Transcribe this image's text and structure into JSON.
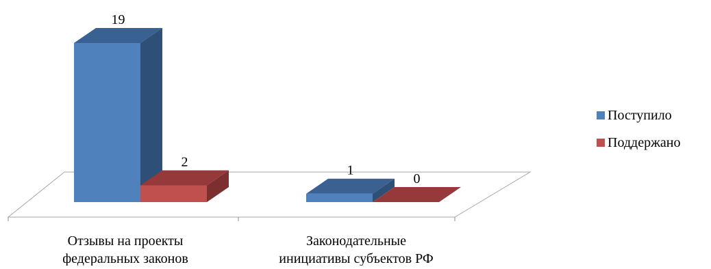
{
  "chart_data": {
    "type": "bar",
    "categories": [
      [
        "Отзывы на проекты",
        "федеральных законов"
      ],
      [
        "Законодательные",
        "инициативы субъектов РФ"
      ]
    ],
    "series": [
      {
        "name": "Поступило",
        "values": [
          19,
          1
        ]
      },
      {
        "name": "Поддержано",
        "values": [
          2,
          0
        ]
      }
    ],
    "grid": false,
    "legend_position": "right",
    "colors": {
      "blue_front": "#4f81bd",
      "blue_top": "#3a6191",
      "blue_side": "#2e4f78",
      "red_front": "#c0504d",
      "red_top": "#96393a",
      "red_side": "#7c2f2f"
    }
  }
}
